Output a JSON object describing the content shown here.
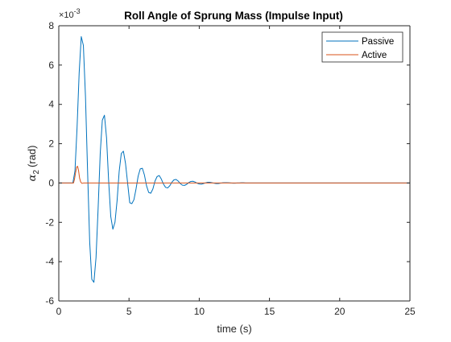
{
  "chart_data": {
    "type": "line",
    "title": "Roll Angle of Sprung Mass (Impulse Input)",
    "xlabel": "time (s)",
    "ylabel": {
      "symbol": "α",
      "subscript": "2",
      "unit": "(rad)"
    },
    "y_exponent": {
      "prefix": "×10",
      "power": "-3"
    },
    "xlim": [
      0,
      25
    ],
    "ylim": [
      -6,
      8
    ],
    "x_ticks": [
      0,
      5,
      10,
      15,
      20,
      25
    ],
    "y_ticks": [
      -6,
      -4,
      -2,
      0,
      2,
      4,
      6,
      8
    ],
    "grid": false,
    "legend_position": "top-right",
    "units_note": "y values are in units of 10^-3 rad",
    "series": [
      {
        "name": "Passive",
        "color": "#0072BD",
        "x": [
          0,
          1.0,
          1.15,
          1.3,
          1.45,
          1.6,
          1.75,
          1.9,
          2.05,
          2.2,
          2.35,
          2.5,
          2.65,
          2.8,
          2.95,
          3.1,
          3.25,
          3.4,
          3.55,
          3.7,
          3.85,
          4.0,
          4.15,
          4.3,
          4.45,
          4.6,
          4.75,
          4.9,
          5.05,
          5.2,
          5.35,
          5.5,
          5.65,
          5.8,
          5.95,
          6.1,
          6.25,
          6.4,
          6.55,
          6.7,
          6.85,
          7.0,
          7.15,
          7.3,
          7.45,
          7.6,
          7.75,
          7.9,
          8.05,
          8.2,
          8.35,
          8.5,
          8.65,
          8.8,
          8.95,
          9.1,
          9.25,
          9.4,
          9.55,
          9.7,
          9.85,
          10.0,
          10.15,
          10.3,
          10.45,
          10.6,
          10.75,
          10.9,
          11.05,
          11.2,
          11.35,
          11.5,
          11.65,
          11.8,
          11.95,
          12.1,
          12.25,
          12.4,
          12.55,
          12.7,
          12.85,
          13.0,
          13.15,
          13.3,
          13.45,
          13.6,
          13.75,
          13.9,
          14.05,
          14.2,
          14.35,
          14.5,
          14.65,
          14.8,
          14.95,
          15.5,
          16.0,
          16.5,
          17.0,
          18.0,
          20.0,
          25.0
        ],
        "values": [
          0,
          0,
          0.6,
          2.8,
          5.6,
          7.45,
          7.0,
          4.4,
          0.6,
          -3.0,
          -4.9,
          -5.05,
          -3.8,
          -1.3,
          1.5,
          3.2,
          3.45,
          2.3,
          0.1,
          -1.7,
          -2.35,
          -2.0,
          -0.9,
          0.6,
          1.5,
          1.62,
          1.0,
          0.0,
          -1.0,
          -1.05,
          -0.85,
          -0.3,
          0.35,
          0.72,
          0.75,
          0.4,
          -0.15,
          -0.48,
          -0.52,
          -0.3,
          0.1,
          0.33,
          0.38,
          0.2,
          -0.05,
          -0.22,
          -0.25,
          -0.14,
          0.04,
          0.16,
          0.18,
          0.1,
          -0.03,
          -0.11,
          -0.12,
          -0.07,
          0.02,
          0.08,
          0.09,
          0.05,
          -0.01,
          -0.05,
          -0.06,
          -0.03,
          0.01,
          0.04,
          0.04,
          0.02,
          -0.01,
          -0.03,
          -0.03,
          -0.01,
          0.01,
          0.02,
          0.02,
          0.01,
          0.0,
          -0.01,
          -0.01,
          0.0,
          0.0,
          0.01,
          0.01,
          0.0,
          0.0,
          0.0,
          0.0,
          0.0,
          0.0,
          0.0,
          0.0,
          0.0,
          0.0,
          0.0,
          0.0,
          0.0,
          0.0,
          0.0,
          0.0,
          0.0,
          0.0,
          0.0
        ]
      },
      {
        "name": "Active",
        "color": "#D95319",
        "x": [
          0,
          1.05,
          1.12,
          1.2,
          1.27,
          1.34,
          1.41,
          1.48,
          1.56,
          1.65,
          1.75,
          2.0,
          25.0
        ],
        "values": [
          0,
          0,
          0.2,
          0.55,
          0.82,
          0.85,
          0.62,
          0.25,
          0.05,
          -0.02,
          0,
          0,
          0
        ]
      }
    ]
  }
}
